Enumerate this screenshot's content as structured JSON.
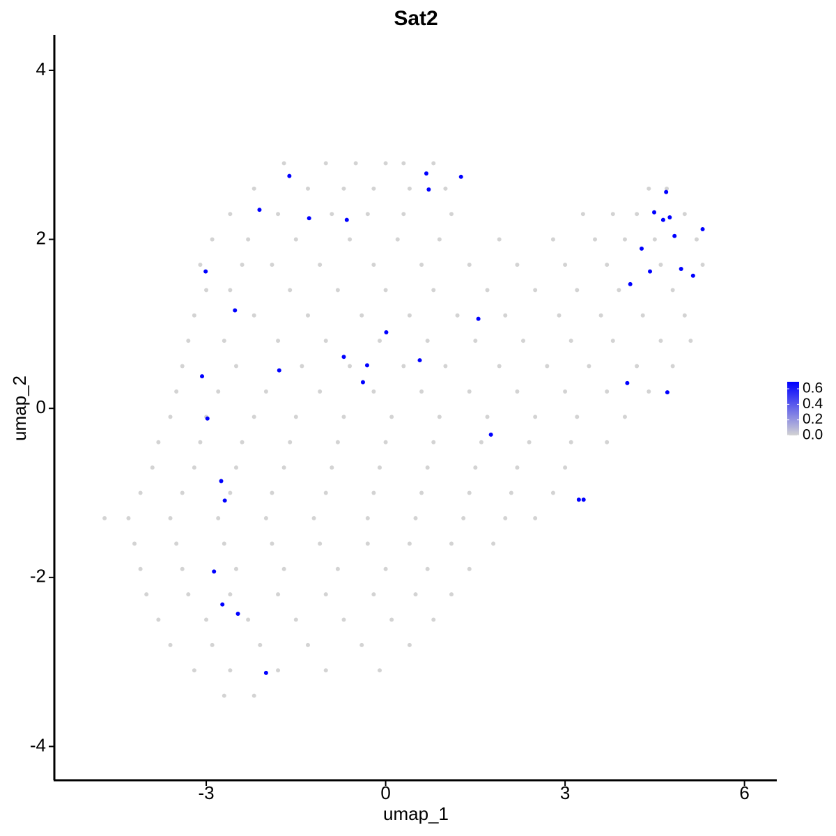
{
  "chart_data": {
    "type": "scatter",
    "title": "Sat2",
    "x_label": "umap_1",
    "y_label": "umap_2",
    "xlim": [
      -5.54,
      6.54
    ],
    "xticks": [
      -3,
      0,
      3,
      6
    ],
    "ylim": [
      -4.4,
      4.42
    ],
    "yticks": [
      -4,
      -2,
      0,
      2,
      4
    ],
    "color_low": "#d3d3d3",
    "color_high": "#0000ff",
    "colorbar_lim": [
      0,
      0.69
    ],
    "colorbar_ticks": [
      {
        "value": 0,
        "label": "0.0"
      },
      0.2,
      0.4,
      0.6
    ],
    "x": [
      -1.7,
      -1,
      -0.5,
      0,
      0.3,
      0.8,
      -2.2,
      -1.3,
      -0.7,
      -0.2,
      0.4,
      1.0,
      4.4,
      4.7,
      -2.6,
      -1.8,
      -0.9,
      -0.3,
      0.3,
      1.1,
      3.3,
      3.8,
      4.2,
      5.0,
      -2.9,
      -2.3,
      -1.5,
      -0.6,
      0.2,
      0.9,
      1.9,
      2.8,
      3.5,
      4.0,
      4.5,
      5.2,
      -3.1,
      -2.4,
      -1.9,
      -1.1,
      -0.2,
      0.6,
      1.4,
      2.2,
      3.0,
      3.7,
      4.6,
      5.3,
      -3.0,
      -2.6,
      -1.6,
      -0.8,
      0.0,
      0.8,
      1.7,
      2.5,
      3.2,
      3.9,
      4.8,
      -3.2,
      -2.2,
      -1.3,
      -0.4,
      0.4,
      1.2,
      2.0,
      2.9,
      3.6,
      4.3,
      5.0,
      -3.3,
      -2.7,
      -1.8,
      -1.0,
      -0.1,
      0.7,
      1.5,
      2.3,
      3.1,
      3.8,
      4.6,
      5.1,
      -3.4,
      -2.5,
      -1.4,
      -0.6,
      0.3,
      1.0,
      1.9,
      2.7,
      3.4,
      4.2,
      4.8,
      -3.5,
      -2.8,
      -2.0,
      -1.1,
      -0.2,
      0.6,
      1.4,
      2.2,
      3.0,
      3.7,
      4.4,
      -3.6,
      -3.0,
      -2.2,
      -1.5,
      -0.7,
      0.1,
      0.9,
      1.7,
      2.5,
      3.2,
      4.0,
      -3.8,
      -3.1,
      -2.4,
      -1.6,
      -0.8,
      0.0,
      0.8,
      1.6,
      2.4,
      3.1,
      3.7,
      -3.9,
      -3.2,
      -2.5,
      -1.7,
      -0.9,
      -0.1,
      0.7,
      1.5,
      2.2,
      3.0,
      -4.1,
      -3.4,
      -2.6,
      -1.9,
      -1.0,
      -0.2,
      0.6,
      1.4,
      2.1,
      2.8,
      -4.7,
      -4.3,
      -3.6,
      -2.8,
      -2.0,
      -1.2,
      -0.3,
      0.5,
      1.3,
      2.0,
      2.5,
      -4.2,
      -3.5,
      -2.7,
      -1.9,
      -1.1,
      -0.3,
      0.4,
      1.1,
      1.8,
      -4.1,
      -3.4,
      -2.5,
      -1.7,
      -0.8,
      0.0,
      0.7,
      1.4,
      -4.0,
      -3.3,
      -2.6,
      -1.8,
      -1.0,
      -0.2,
      0.5,
      1.1,
      -3.8,
      -3.0,
      -2.3,
      -1.5,
      -0.7,
      0.1,
      0.8,
      -3.6,
      -2.9,
      -2.1,
      -1.3,
      -0.4,
      0.4,
      -3.2,
      -2.6,
      -1.8,
      -1.0,
      -0.1,
      -2.7,
      -2.2,
      -1.61,
      0.68,
      0.72,
      1.26,
      -2.11,
      -1.28,
      -0.65,
      -3.01,
      -2.52,
      0.01,
      -0.7,
      -0.31,
      0.57,
      -0.38,
      -1.78,
      -3.07,
      -2.98,
      1.55,
      1.76,
      -2.75,
      -2.69,
      -2.87,
      -2.73,
      -2.47,
      -2.0,
      3.23,
      3.31,
      4.04,
      4.71,
      4.09,
      4.28,
      4.42,
      4.49,
      4.69,
      4.64,
      4.75,
      4.83,
      4.94,
      5.14,
      5.3
    ],
    "y": [
      2.9,
      2.9,
      2.9,
      2.9,
      2.9,
      2.9,
      2.6,
      2.6,
      2.6,
      2.6,
      2.6,
      2.6,
      2.6,
      2.6,
      2.3,
      2.3,
      2.3,
      2.3,
      2.3,
      2.3,
      2.3,
      2.3,
      2.3,
      2.3,
      2.0,
      2.0,
      2.0,
      2.0,
      2.0,
      2.0,
      2.0,
      2.0,
      2.0,
      2.0,
      2.0,
      2.0,
      1.7,
      1.7,
      1.7,
      1.7,
      1.7,
      1.7,
      1.7,
      1.7,
      1.7,
      1.7,
      1.7,
      1.7,
      1.4,
      1.4,
      1.4,
      1.4,
      1.4,
      1.4,
      1.4,
      1.4,
      1.4,
      1.4,
      1.4,
      1.1,
      1.1,
      1.1,
      1.1,
      1.1,
      1.1,
      1.1,
      1.1,
      1.1,
      1.1,
      1.1,
      0.8,
      0.8,
      0.8,
      0.8,
      0.8,
      0.8,
      0.8,
      0.8,
      0.8,
      0.8,
      0.8,
      0.8,
      0.5,
      0.5,
      0.5,
      0.5,
      0.5,
      0.5,
      0.5,
      0.5,
      0.5,
      0.5,
      0.5,
      0.2,
      0.2,
      0.2,
      0.2,
      0.2,
      0.2,
      0.2,
      0.2,
      0.2,
      0.2,
      0.2,
      -0.1,
      -0.1,
      -0.1,
      -0.1,
      -0.1,
      -0.1,
      -0.1,
      -0.1,
      -0.1,
      -0.1,
      -0.1,
      -0.4,
      -0.4,
      -0.4,
      -0.4,
      -0.4,
      -0.4,
      -0.4,
      -0.4,
      -0.4,
      -0.4,
      -0.4,
      -0.7,
      -0.7,
      -0.7,
      -0.7,
      -0.7,
      -0.7,
      -0.7,
      -0.7,
      -0.7,
      -0.7,
      -1.0,
      -1.0,
      -1.0,
      -1.0,
      -1.0,
      -1.0,
      -1.0,
      -1.0,
      -1.0,
      -1.0,
      -1.3,
      -1.3,
      -1.3,
      -1.3,
      -1.3,
      -1.3,
      -1.3,
      -1.3,
      -1.3,
      -1.3,
      -1.3,
      -1.6,
      -1.6,
      -1.6,
      -1.6,
      -1.6,
      -1.6,
      -1.6,
      -1.6,
      -1.6,
      -1.9,
      -1.9,
      -1.9,
      -1.9,
      -1.9,
      -1.9,
      -1.9,
      -1.9,
      -2.2,
      -2.2,
      -2.2,
      -2.2,
      -2.2,
      -2.2,
      -2.2,
      -2.2,
      -2.5,
      -2.5,
      -2.5,
      -2.5,
      -2.5,
      -2.5,
      -2.5,
      -2.8,
      -2.8,
      -2.8,
      -2.8,
      -2.8,
      -2.8,
      -3.1,
      -3.1,
      -3.1,
      -3.1,
      -3.1,
      -3.4,
      -3.4,
      2.75,
      2.78,
      2.59,
      2.74,
      2.35,
      2.25,
      2.23,
      1.62,
      1.16,
      0.9,
      0.61,
      0.51,
      0.57,
      0.31,
      0.45,
      0.38,
      -0.12,
      1.06,
      -0.31,
      -0.86,
      -1.09,
      -1.93,
      -2.32,
      -2.43,
      -3.13,
      -1.08,
      -1.08,
      0.3,
      0.19,
      1.47,
      1.89,
      1.62,
      2.32,
      2.56,
      2.23,
      2.26,
      2.04,
      1.65,
      1.57,
      2.12
    ],
    "values": [
      0,
      0,
      0,
      0,
      0,
      0,
      0,
      0,
      0,
      0,
      0,
      0,
      0,
      0,
      0,
      0,
      0,
      0,
      0,
      0,
      0,
      0,
      0,
      0,
      0,
      0,
      0,
      0,
      0,
      0,
      0,
      0,
      0,
      0,
      0,
      0,
      0,
      0,
      0,
      0,
      0,
      0,
      0,
      0,
      0,
      0,
      0,
      0,
      0,
      0,
      0,
      0,
      0,
      0,
      0,
      0,
      0,
      0,
      0,
      0,
      0,
      0,
      0,
      0,
      0,
      0,
      0,
      0,
      0,
      0,
      0,
      0,
      0,
      0,
      0,
      0,
      0,
      0,
      0,
      0,
      0,
      0,
      0,
      0,
      0,
      0,
      0,
      0,
      0,
      0,
      0,
      0,
      0,
      0,
      0,
      0,
      0,
      0,
      0,
      0,
      0,
      0,
      0,
      0,
      0,
      0,
      0,
      0,
      0,
      0,
      0,
      0,
      0,
      0,
      0,
      0,
      0,
      0,
      0,
      0,
      0,
      0,
      0,
      0,
      0,
      0,
      0,
      0,
      0,
      0,
      0,
      0,
      0,
      0,
      0,
      0,
      0,
      0,
      0,
      0,
      0,
      0,
      0,
      0,
      0,
      0,
      0,
      0,
      0,
      0,
      0,
      0,
      0,
      0,
      0,
      0,
      0,
      0,
      0,
      0,
      0,
      0,
      0,
      0,
      0,
      0,
      0,
      0,
      0,
      0,
      0,
      0,
      0,
      0,
      0,
      0,
      0,
      0,
      0,
      0,
      0,
      0,
      0,
      0,
      0,
      0,
      0,
      0,
      0,
      0,
      0,
      0,
      0,
      0,
      0,
      0,
      0,
      0,
      0,
      0,
      0,
      0,
      0.69,
      0.69,
      0.69,
      0.69,
      0.69,
      0.69,
      0.69,
      0.69,
      0.69,
      0.69,
      0.69,
      0.69,
      0.69,
      0.69,
      0.69,
      0.69,
      0.69,
      0.69,
      0.69,
      0.69,
      0.69,
      0.69,
      0.69,
      0.69,
      0.69,
      0.69,
      0.69,
      0.69,
      0.69,
      0.69,
      0.69,
      0.69,
      0.69,
      0.69,
      0.69,
      0.69,
      0.69,
      0.69,
      0.69,
      0.69
    ]
  }
}
